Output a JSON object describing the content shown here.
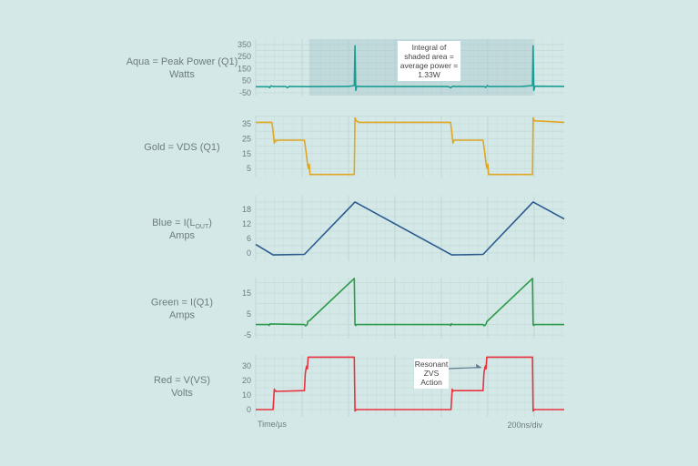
{
  "chart_data": [
    {
      "type": "line",
      "label_lines": [
        "Aqua = Peak Power (Q1)",
        "Watts"
      ],
      "color": "#1a9e93",
      "ylim": [
        -73,
        395
      ],
      "yticks": [
        350,
        250,
        150,
        50,
        -50
      ],
      "shaded_region_x": [
        230,
        1196
      ],
      "annotation": {
        "lines": [
          "Integral of",
          "shaded area =",
          "average power =",
          "1.33W"
        ]
      },
      "x": [
        0,
        55,
        60,
        65,
        75,
        130,
        137,
        145,
        150,
        230,
        400,
        425,
        428,
        431,
        435,
        450,
        830,
        840,
        850,
        860,
        985,
        992,
        998,
        1005,
        1150,
        1193,
        1196,
        1199,
        1203,
        1330
      ],
      "y": [
        0,
        0,
        -8,
        8,
        2,
        2,
        -8,
        4,
        2,
        1,
        3,
        10,
        340,
        -30,
        5,
        2,
        2,
        -8,
        5,
        2,
        2,
        -5,
        10,
        2,
        3,
        10,
        340,
        -30,
        5,
        3
      ]
    },
    {
      "type": "line",
      "label_lines": [
        "Gold = VDS (Q1)"
      ],
      "color": "#e0a624",
      "ylim": [
        -1,
        40.5
      ],
      "yticks": [
        35,
        25,
        15,
        5
      ],
      "x": [
        0,
        70,
        75,
        80,
        85,
        90,
        95,
        210,
        218,
        224,
        228,
        231,
        234,
        425,
        428,
        433,
        445,
        840,
        845,
        850,
        855,
        980,
        988,
        994,
        998,
        1001,
        1004,
        1193,
        1196,
        1201,
        1330
      ],
      "y": [
        36,
        36,
        30,
        22,
        24,
        23.5,
        24,
        24,
        15,
        7,
        5,
        8,
        1,
        1,
        39,
        37,
        36,
        36,
        30,
        22,
        24,
        24,
        15,
        7,
        5,
        8,
        1,
        1,
        39,
        37,
        36
      ]
    },
    {
      "type": "line",
      "label_prefix": "Blue = I(L",
      "label_sub": "OUT",
      "label_suffix": ")",
      "label_line2": "Amps",
      "color": "#2b5a8f",
      "ylim": [
        -3.4,
        23.6
      ],
      "yticks": [
        18,
        12,
        6,
        0
      ],
      "x": [
        0,
        75,
        210,
        428,
        845,
        980,
        1196,
        1330
      ],
      "y": [
        3.5,
        -0.8,
        -0.6,
        21,
        -0.8,
        -0.6,
        21,
        14
      ]
    },
    {
      "type": "line",
      "label_lines": [
        "Green = I(Q1)",
        "Amps"
      ],
      "color": "#2e9a4c",
      "ylim": [
        -6.7,
        22.4
      ],
      "yticks": [
        15,
        5,
        -5
      ],
      "x": [
        0,
        55,
        58,
        61,
        210,
        215,
        222,
        225,
        230,
        233,
        425,
        428,
        431,
        434,
        836,
        840,
        844,
        848,
        980,
        985,
        992,
        997,
        1002,
        1193,
        1196,
        1199,
        1202,
        1330
      ],
      "y": [
        0,
        0,
        -0.4,
        0.3,
        0,
        -0.6,
        0,
        1.5,
        1.8,
        2,
        22,
        0,
        -0.5,
        0,
        0,
        -0.5,
        0.4,
        0,
        0,
        -0.6,
        0,
        1.5,
        2,
        22,
        0,
        -0.5,
        0,
        0
      ]
    },
    {
      "type": "line",
      "label_lines": [
        "Red = V(VS)",
        "Volts"
      ],
      "color": "#e8323e",
      "ylim": [
        -5,
        37.5
      ],
      "yticks": [
        30,
        20,
        10,
        0
      ],
      "annotation": {
        "lines": [
          "Resonant",
          "ZVS",
          "Action"
        ],
        "target": [
          988,
          29
        ]
      },
      "x": [
        0,
        75,
        80,
        83,
        86,
        88,
        210,
        214,
        218,
        221,
        223,
        226,
        425,
        428,
        434,
        842,
        847,
        850,
        853,
        980,
        984,
        988,
        991,
        993,
        996,
        1193,
        1196,
        1202,
        1330
      ],
      "y": [
        0,
        0,
        14,
        12.5,
        13,
        12.5,
        13,
        25,
        29,
        30,
        28,
        36,
        36,
        -1,
        0,
        0,
        14,
        12.5,
        13,
        13,
        25,
        29,
        30,
        28,
        36,
        36,
        -1,
        0,
        0
      ]
    }
  ],
  "x_axis": {
    "label": "Time/µs",
    "scale": "200ns/div",
    "major_step": 200,
    "minor_step": 40,
    "xlim": [
      0,
      1330
    ]
  }
}
